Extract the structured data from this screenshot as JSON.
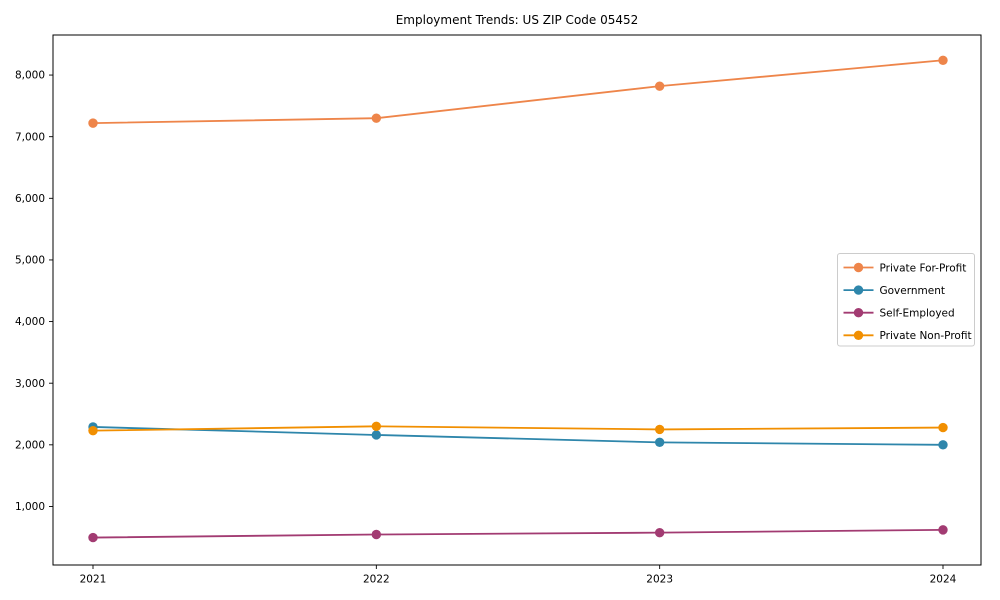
{
  "figure": {
    "title": "Employment Trends: US ZIP Code 05452"
  },
  "chart_data": {
    "type": "line",
    "title": "Employment Trends: US ZIP Code 05452",
    "xlabel": "",
    "ylabel": "",
    "x_tick_labels": [
      "2021",
      "2022",
      "2023",
      "2024"
    ],
    "y_ticks": [
      1000,
      2000,
      3000,
      4000,
      5000,
      6000,
      7000,
      8000
    ],
    "y_tick_labels": [
      "1,000",
      "2,000",
      "3,000",
      "4,000",
      "5,000",
      "6,000",
      "7,000",
      "8,000"
    ],
    "ylim": [
      50,
      8650
    ],
    "grid": false,
    "legend_position": "center-right",
    "background_color": "#ffffff",
    "axis_color": "#000000",
    "legend_border_color": "#cccccc",
    "series": [
      {
        "name": "Private For-Profit",
        "color": "#EE854A",
        "values": [
          7220,
          7300,
          7820,
          8240
        ]
      },
      {
        "name": "Government",
        "color": "#2E86AB",
        "values": [
          2290,
          2160,
          2040,
          2000
        ]
      },
      {
        "name": "Self-Employed",
        "color": "#A23B72",
        "values": [
          495,
          545,
          575,
          620
        ]
      },
      {
        "name": "Private Non-Profit",
        "color": "#F18F01",
        "values": [
          2230,
          2300,
          2250,
          2280
        ]
      }
    ]
  }
}
